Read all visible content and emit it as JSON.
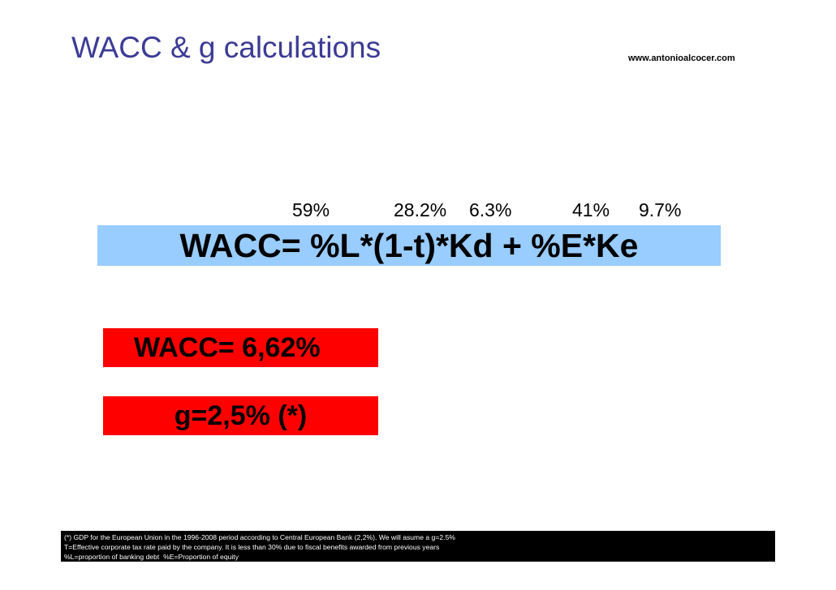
{
  "header": {
    "title": "WACC & g calculations",
    "website": "www.antonioalcocer.com"
  },
  "formula": {
    "inputs": [
      "59%",
      "28.2%",
      "6.3%",
      "41%",
      "9.7%"
    ],
    "text": "WACC= %L*(1-t)*Kd + %E*Ke"
  },
  "results": {
    "wacc": "WACC= 6,62%",
    "growth": "g=2,5% (*)"
  },
  "footnotes": [
    "(*) GDP for the European Union in the 1996-2008 period according to Central European Bank (2,2%). We will asume a g=2.5%",
    "T=Effective corporate tax rate paid by the company. It is less than 30% due to fiscal benefits awarded from previous years",
    "%L=proportion of banking debt  %E=Proportion of equity"
  ]
}
